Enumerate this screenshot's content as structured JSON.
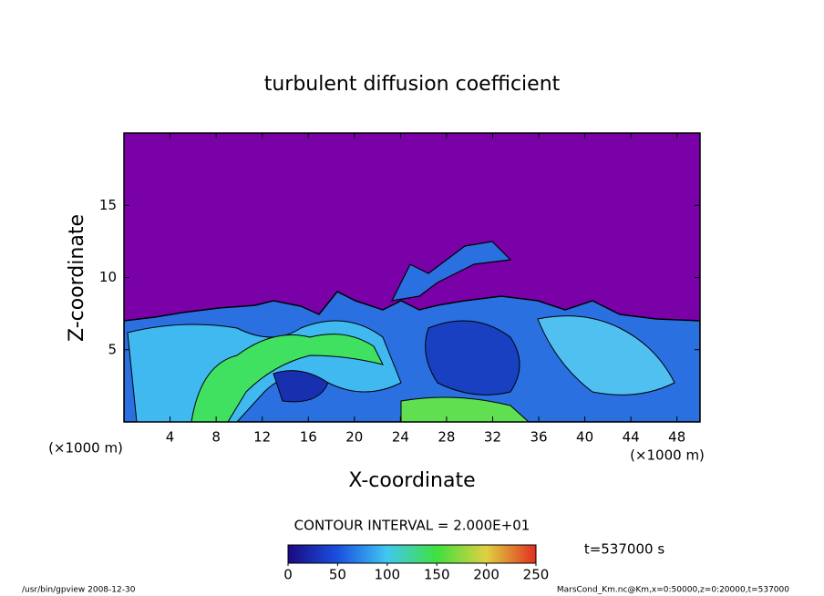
{
  "chart_data": {
    "type": "heatmap",
    "title": "turbulent diffusion coefficient",
    "x_label": "X-coordinate",
    "y_label": "Z-coordinate",
    "x_unit_label": "(×1000 m)",
    "y_unit_label": "(×1000 m)",
    "xlim": [
      0,
      50
    ],
    "xticks": [
      4,
      8,
      12,
      16,
      20,
      24,
      28,
      32,
      36,
      40,
      44,
      48
    ],
    "ylim": [
      0,
      20
    ],
    "yticks": [
      5,
      10,
      15
    ],
    "colorbar": {
      "lim": [
        0,
        250
      ],
      "ticks": [
        0,
        50,
        100,
        150,
        200,
        250
      ]
    },
    "contour_label": "CONTOUR INTERVAL = 2.000E+01",
    "time_label": "t=537000 s",
    "footer_left": "/usr/bin/gpview  2008-12-30",
    "footer_right": "MarsCond_Km.nc@Km,x=0:50000,z=0:20000,t=537000"
  }
}
